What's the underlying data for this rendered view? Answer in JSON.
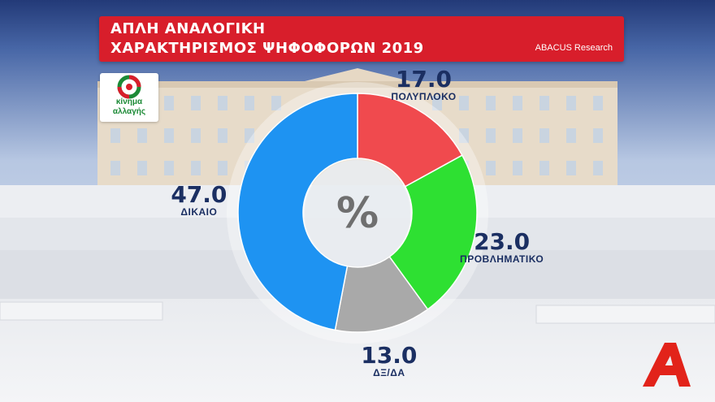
{
  "header": {
    "title_line1": "ΑΠΛΗ ΑΝΑΛΟΓΙΚΗ",
    "title_line2": "ΧΑΡΑΚΤΗΡΙΣΜΟΣ ΨΗΦΟΦΟΡΩΝ 2019",
    "source": "ABACUS Research"
  },
  "logo": {
    "line1": "κίνημα",
    "line2": "αλλαγής",
    "icon": "kinal-party-logo"
  },
  "center_symbol": "%",
  "channel_logo": "alpha-tv-logo",
  "colors": {
    "title_bar": "#d81e2b",
    "label_text": "#1b2f62",
    "polyplokos": "#f04a4e",
    "provlimatiko": "#2ee032",
    "dex_da": "#a9a9a9",
    "dikaio": "#1e93f2"
  },
  "chart_data": {
    "type": "pie",
    "style": "donut",
    "title": "ΧΑΡΑΚΤΗΡΙΣΜΟΣ ΨΗΦΟΦΟΡΩΝ 2019",
    "categories": [
      "ΠΟΛΥΠΛΟΚΟ",
      "ΠΡΟΒΛΗΜΑΤΙΚΟ",
      "ΔΞ/ΔΑ",
      "ΔΙΚΑΙΟ"
    ],
    "values": [
      17.0,
      23.0,
      13.0,
      47.0
    ],
    "value_labels": [
      "17.0",
      "23.0",
      "13.0",
      "47.0"
    ],
    "colors": [
      "#f04a4e",
      "#2ee032",
      "#a9a9a9",
      "#1e93f2"
    ],
    "start": "top",
    "direction": "clockwise"
  }
}
